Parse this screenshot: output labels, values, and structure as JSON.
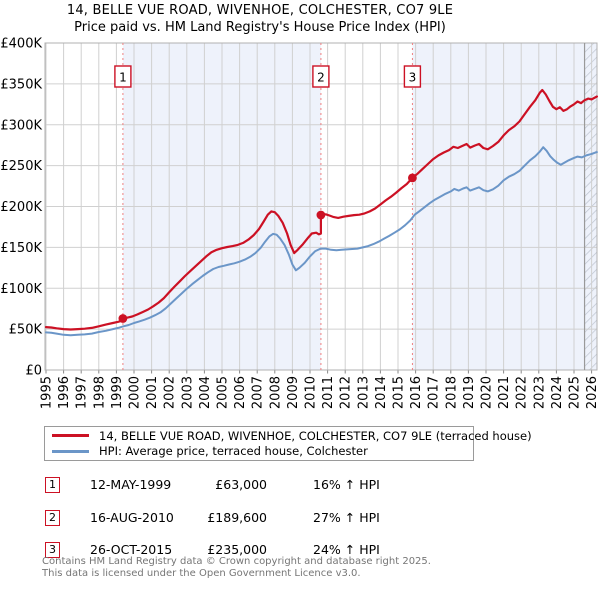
{
  "title": {
    "line1": "14, BELLE VUE ROAD, WIVENHOE, COLCHESTER, CO7 9LE",
    "line2": "Price paid vs. HM Land Registry's House Price Index (HPI)"
  },
  "chart_data": {
    "type": "line",
    "x_axis": {
      "ticks": [
        1995,
        1996,
        1997,
        1998,
        1999,
        2000,
        2001,
        2002,
        2003,
        2004,
        2005,
        2006,
        2007,
        2008,
        2009,
        2010,
        2011,
        2012,
        2013,
        2014,
        2015,
        2016,
        2017,
        2018,
        2019,
        2020,
        2021,
        2022,
        2023,
        2024,
        2025,
        2026
      ],
      "range": [
        1994.94,
        2026.35
      ]
    },
    "y_axis": {
      "unit": "GBP_thousands",
      "range": [
        0,
        400
      ],
      "ticks": [
        {
          "label": "£0",
          "value": 0
        },
        {
          "label": "£50K",
          "value": 50
        },
        {
          "label": "£100K",
          "value": 100
        },
        {
          "label": "£150K",
          "value": 150
        },
        {
          "label": "£200K",
          "value": 200
        },
        {
          "label": "£250K",
          "value": 250
        },
        {
          "label": "£300K",
          "value": 300
        },
        {
          "label": "£350K",
          "value": 350
        },
        {
          "label": "£400K",
          "value": 400
        }
      ]
    },
    "grid_color": "#d0d0d0",
    "border_color": "#b0b0b0",
    "sale_line_color": "#f08080",
    "now_line_color": "#999999",
    "period_fill": "#eef2fb",
    "hatch_start_year": 2025.6,
    "bg_regions": [
      {
        "from": 1994.94,
        "to": 1999.37,
        "color": "#ffffff"
      },
      {
        "from": 1999.37,
        "to": 2010.62,
        "color": "#eef2fb"
      },
      {
        "from": 2010.62,
        "to": 2015.82,
        "color": "#ffffff"
      },
      {
        "from": 2015.82,
        "to": 2026.35,
        "color": "#eef2fb"
      }
    ],
    "markers": [
      {
        "num": "1",
        "year": 1999.37,
        "value": 63
      },
      {
        "num": "2",
        "year": 2010.62,
        "value": 189.6
      },
      {
        "num": "3",
        "year": 2015.82,
        "value": 235
      }
    ],
    "series": [
      {
        "name": "price-paid",
        "label": "14, BELLE VUE ROAD, WIVENHOE, COLCHESTER, CO7 9LE (terraced house)",
        "color": "#cc1124",
        "width": 2.2,
        "points": [
          [
            1995.0,
            52.5
          ],
          [
            1995.3,
            52
          ],
          [
            1995.6,
            51
          ],
          [
            1996.0,
            50
          ],
          [
            1996.4,
            49.5
          ],
          [
            1996.8,
            50
          ],
          [
            1997.2,
            50.5
          ],
          [
            1997.6,
            51.5
          ],
          [
            1998.0,
            53.5
          ],
          [
            1998.4,
            55.5
          ],
          [
            1998.8,
            57.5
          ],
          [
            1999.1,
            59
          ],
          [
            1999.37,
            60.5
          ],
          [
            1999.37,
            63
          ],
          [
            1999.6,
            64
          ],
          [
            1999.9,
            65.5
          ],
          [
            2000.2,
            68
          ],
          [
            2000.5,
            71
          ],
          [
            2000.8,
            74
          ],
          [
            2001.1,
            78
          ],
          [
            2001.4,
            82.5
          ],
          [
            2001.7,
            88
          ],
          [
            2002.0,
            95
          ],
          [
            2002.3,
            102
          ],
          [
            2002.6,
            108.5
          ],
          [
            2002.9,
            115
          ],
          [
            2003.2,
            121
          ],
          [
            2003.5,
            127
          ],
          [
            2003.8,
            133
          ],
          [
            2004.1,
            139
          ],
          [
            2004.4,
            144
          ],
          [
            2004.7,
            147
          ],
          [
            2005.0,
            149
          ],
          [
            2005.3,
            150.5
          ],
          [
            2005.6,
            151.5
          ],
          [
            2005.9,
            153
          ],
          [
            2006.2,
            155.5
          ],
          [
            2006.5,
            159.5
          ],
          [
            2006.8,
            165
          ],
          [
            2007.1,
            172.5
          ],
          [
            2007.35,
            181
          ],
          [
            2007.6,
            190
          ],
          [
            2007.8,
            194
          ],
          [
            2008.0,
            193
          ],
          [
            2008.2,
            188.5
          ],
          [
            2008.45,
            180
          ],
          [
            2008.7,
            167
          ],
          [
            2008.9,
            153
          ],
          [
            2009.1,
            143
          ],
          [
            2009.3,
            147
          ],
          [
            2009.6,
            154
          ],
          [
            2009.9,
            162
          ],
          [
            2010.1,
            167
          ],
          [
            2010.35,
            168
          ],
          [
            2010.5,
            166
          ],
          [
            2010.62,
            167
          ],
          [
            2010.62,
            189.6
          ],
          [
            2010.9,
            190.5
          ],
          [
            2011.1,
            189
          ],
          [
            2011.35,
            187
          ],
          [
            2011.6,
            186
          ],
          [
            2011.9,
            187.5
          ],
          [
            2012.2,
            188.5
          ],
          [
            2012.5,
            189.5
          ],
          [
            2012.8,
            190
          ],
          [
            2013.1,
            191.5
          ],
          [
            2013.4,
            194
          ],
          [
            2013.7,
            197.5
          ],
          [
            2014.0,
            202.5
          ],
          [
            2014.3,
            207.5
          ],
          [
            2014.6,
            212
          ],
          [
            2014.9,
            217
          ],
          [
            2015.2,
            222.5
          ],
          [
            2015.5,
            227.5
          ],
          [
            2015.82,
            235
          ],
          [
            2016.1,
            240
          ],
          [
            2016.4,
            246
          ],
          [
            2016.7,
            252
          ],
          [
            2017.0,
            258
          ],
          [
            2017.3,
            262.5
          ],
          [
            2017.6,
            266
          ],
          [
            2017.9,
            269
          ],
          [
            2018.15,
            273
          ],
          [
            2018.4,
            271.5
          ],
          [
            2018.65,
            274
          ],
          [
            2018.9,
            276.5
          ],
          [
            2019.1,
            272
          ],
          [
            2019.35,
            274.5
          ],
          [
            2019.6,
            276.5
          ],
          [
            2019.85,
            271.5
          ],
          [
            2020.1,
            270
          ],
          [
            2020.4,
            274
          ],
          [
            2020.7,
            279
          ],
          [
            2021.0,
            287
          ],
          [
            2021.3,
            293.5
          ],
          [
            2021.6,
            298
          ],
          [
            2021.9,
            304
          ],
          [
            2022.2,
            313
          ],
          [
            2022.5,
            322
          ],
          [
            2022.8,
            330
          ],
          [
            2023.05,
            339
          ],
          [
            2023.2,
            342.5
          ],
          [
            2023.4,
            337
          ],
          [
            2023.6,
            329
          ],
          [
            2023.8,
            322
          ],
          [
            2024.0,
            319
          ],
          [
            2024.2,
            321.5
          ],
          [
            2024.4,
            317
          ],
          [
            2024.6,
            319
          ],
          [
            2024.8,
            322.5
          ],
          [
            2025.0,
            325
          ],
          [
            2025.2,
            328.5
          ],
          [
            2025.4,
            326.5
          ],
          [
            2025.6,
            330
          ],
          [
            2025.8,
            332
          ],
          [
            2026.0,
            331
          ],
          [
            2026.3,
            334.5
          ]
        ]
      },
      {
        "name": "hpi",
        "label": "HPI: Average price, terraced house, Colchester",
        "color": "#6b96c8",
        "width": 2,
        "points": [
          [
            1995.0,
            46
          ],
          [
            1995.3,
            45.5
          ],
          [
            1995.6,
            44.5
          ],
          [
            1996.0,
            43
          ],
          [
            1996.4,
            42.5
          ],
          [
            1996.8,
            43
          ],
          [
            1997.2,
            43.5
          ],
          [
            1997.6,
            44.5
          ],
          [
            1998.0,
            46.5
          ],
          [
            1998.4,
            48
          ],
          [
            1998.8,
            50
          ],
          [
            1999.1,
            51.5
          ],
          [
            1999.4,
            53.5
          ],
          [
            1999.7,
            55
          ],
          [
            2000.0,
            57.5
          ],
          [
            2000.3,
            59.5
          ],
          [
            2000.6,
            61.5
          ],
          [
            2000.9,
            64
          ],
          [
            2001.2,
            67
          ],
          [
            2001.5,
            70.5
          ],
          [
            2001.8,
            75.5
          ],
          [
            2002.1,
            81.5
          ],
          [
            2002.4,
            87.5
          ],
          [
            2002.7,
            93.5
          ],
          [
            2003.0,
            99.5
          ],
          [
            2003.3,
            105
          ],
          [
            2003.6,
            110
          ],
          [
            2003.9,
            115
          ],
          [
            2004.2,
            119.5
          ],
          [
            2004.5,
            123.5
          ],
          [
            2004.8,
            126
          ],
          [
            2005.1,
            127.5
          ],
          [
            2005.4,
            129
          ],
          [
            2005.7,
            130.5
          ],
          [
            2006.0,
            132.5
          ],
          [
            2006.3,
            135
          ],
          [
            2006.6,
            138.5
          ],
          [
            2006.9,
            143
          ],
          [
            2007.2,
            149.5
          ],
          [
            2007.45,
            157
          ],
          [
            2007.7,
            163.5
          ],
          [
            2007.9,
            166.5
          ],
          [
            2008.1,
            165.5
          ],
          [
            2008.3,
            161
          ],
          [
            2008.55,
            153
          ],
          [
            2008.8,
            141
          ],
          [
            2009.0,
            129
          ],
          [
            2009.2,
            122
          ],
          [
            2009.4,
            125
          ],
          [
            2009.7,
            131
          ],
          [
            2010.0,
            139
          ],
          [
            2010.3,
            145.5
          ],
          [
            2010.6,
            148.5
          ],
          [
            2010.9,
            148.5
          ],
          [
            2011.2,
            147
          ],
          [
            2011.5,
            146.5
          ],
          [
            2011.8,
            147
          ],
          [
            2012.1,
            147.5
          ],
          [
            2012.4,
            148
          ],
          [
            2012.7,
            148.5
          ],
          [
            2013.0,
            150
          ],
          [
            2013.3,
            151.5
          ],
          [
            2013.6,
            154
          ],
          [
            2013.9,
            157
          ],
          [
            2014.2,
            160.5
          ],
          [
            2014.5,
            164
          ],
          [
            2014.8,
            168
          ],
          [
            2015.1,
            172
          ],
          [
            2015.4,
            177
          ],
          [
            2015.7,
            183
          ],
          [
            2015.95,
            190
          ],
          [
            2016.2,
            194
          ],
          [
            2016.5,
            199
          ],
          [
            2016.8,
            204
          ],
          [
            2017.1,
            208.5
          ],
          [
            2017.4,
            212
          ],
          [
            2017.7,
            215.5
          ],
          [
            2018.0,
            218.5
          ],
          [
            2018.2,
            221.5
          ],
          [
            2018.45,
            219.5
          ],
          [
            2018.7,
            222
          ],
          [
            2018.9,
            223.5
          ],
          [
            2019.1,
            219.5
          ],
          [
            2019.35,
            221.5
          ],
          [
            2019.6,
            223.5
          ],
          [
            2019.85,
            220
          ],
          [
            2020.1,
            218.5
          ],
          [
            2020.4,
            221
          ],
          [
            2020.7,
            225.5
          ],
          [
            2021.0,
            232
          ],
          [
            2021.3,
            236.5
          ],
          [
            2021.6,
            239.5
          ],
          [
            2021.9,
            243.5
          ],
          [
            2022.2,
            250
          ],
          [
            2022.5,
            256.5
          ],
          [
            2022.8,
            261.5
          ],
          [
            2023.05,
            267
          ],
          [
            2023.25,
            272.5
          ],
          [
            2023.45,
            268
          ],
          [
            2023.65,
            261.5
          ],
          [
            2023.85,
            257
          ],
          [
            2024.05,
            253.5
          ],
          [
            2024.25,
            251
          ],
          [
            2024.45,
            253.5
          ],
          [
            2024.7,
            256.5
          ],
          [
            2024.95,
            259
          ],
          [
            2025.2,
            261
          ],
          [
            2025.45,
            260
          ],
          [
            2025.7,
            262.5
          ],
          [
            2025.95,
            264
          ],
          [
            2026.3,
            266.5
          ]
        ]
      }
    ]
  },
  "legend": {
    "items": [
      {
        "label": "14, BELLE VUE ROAD, WIVENHOE, COLCHESTER, CO7 9LE (terraced house)",
        "color": "#cc1124"
      },
      {
        "label": "HPI: Average price, terraced house, Colchester",
        "color": "#6b96c8"
      }
    ]
  },
  "transactions": [
    {
      "num": "1",
      "date": "12-MAY-1999",
      "price": "£63,000",
      "hpi": "16% ↑ HPI"
    },
    {
      "num": "2",
      "date": "16-AUG-2010",
      "price": "£189,600",
      "hpi": "27% ↑ HPI"
    },
    {
      "num": "3",
      "date": "26-OCT-2015",
      "price": "£235,000",
      "hpi": "24% ↑ HPI"
    }
  ],
  "footer": {
    "line1": "Contains HM Land Registry data © Crown copyright and database right 2025.",
    "line2": "This data is licensed under the Open Government Licence v3.0."
  }
}
